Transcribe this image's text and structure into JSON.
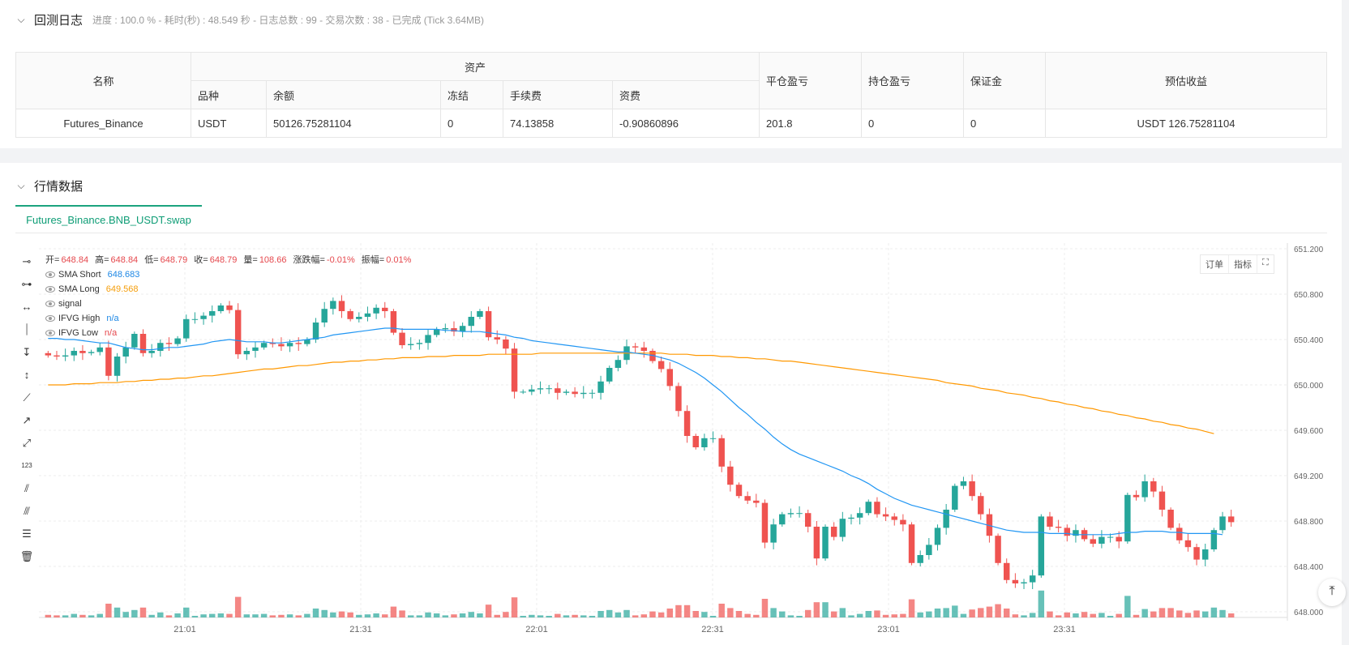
{
  "log": {
    "title": "回测日志",
    "status": "进度 : 100.0 % - 耗时(秒) : 48.549  秒 - 日志总数 : 99 - 交易次数 : 38 - 已完成 (Tick 3.64MB)"
  },
  "account_table": {
    "headers": {
      "name": "名称",
      "assets": "资产",
      "symbol": "品种",
      "balance": "余额",
      "frozen": "冻结",
      "fee": "手续费",
      "funding": "资费",
      "close_pnl": "平仓盈亏",
      "position_pnl": "持仓盈亏",
      "margin": "保证金",
      "est_profit": "预估收益"
    },
    "row": {
      "name": "Futures_Binance",
      "symbol": "USDT",
      "balance": "50126.75281104",
      "frozen": "0",
      "fee": "74.13858",
      "funding": "-0.90860896",
      "close_pnl": "201.8",
      "position_pnl": "0",
      "margin": "0",
      "est_profit": "USDT 126.75281104"
    }
  },
  "market": {
    "title": "行情数据",
    "tab": "Futures_Binance.BNB_USDT.swap"
  },
  "chart_buttons": {
    "orders": "订单",
    "indicators": "指标"
  },
  "legend": {
    "ohlc": {
      "open_label": "开=",
      "open": "648.84",
      "high_label": "高=",
      "high": "648.84",
      "low_label": "低=",
      "low": "648.79",
      "close_label": "收=",
      "close": "648.79",
      "vol_label": "量=",
      "vol": "108.66",
      "chg_label": "涨跌幅=",
      "chg": "-0.01%",
      "amp_label": "振幅=",
      "amp": "0.01%"
    },
    "sma_short": {
      "name": "SMA Short",
      "value": "648.683"
    },
    "sma_long": {
      "name": "SMA Long",
      "value": "649.568"
    },
    "signal": {
      "name": "signal"
    },
    "ifvg_high": {
      "name": "IFVG High",
      "value": "n/a"
    },
    "ifvg_low": {
      "name": "IFVG Low",
      "value": "n/a"
    }
  },
  "colors": {
    "up": "#26a69a",
    "down": "#ef5350",
    "sma_short": "#2196f3",
    "sma_long": "#ff9800",
    "accent": "#1ba37e"
  },
  "chart_data": {
    "type": "candlestick",
    "y_ticks": [
      "651.200",
      "650.800",
      "650.400",
      "650.000",
      "649.600",
      "649.200",
      "648.800",
      "648.400",
      "648.000"
    ],
    "ylim": [
      647.95,
      651.25
    ],
    "x_ticks": [
      "21:01",
      "21:31",
      "22:01",
      "22:31",
      "23:01",
      "23:31"
    ],
    "closes": [
      650.26,
      650.25,
      650.26,
      650.3,
      650.28,
      650.29,
      650.33,
      650.08,
      650.25,
      650.33,
      650.45,
      650.28,
      650.3,
      650.37,
      650.36,
      650.41,
      650.58,
      650.58,
      650.61,
      650.65,
      650.7,
      650.66,
      650.27,
      650.3,
      650.33,
      650.37,
      650.36,
      650.34,
      650.37,
      650.36,
      650.4,
      650.55,
      650.67,
      650.74,
      650.65,
      650.58,
      650.6,
      650.63,
      650.68,
      650.65,
      650.46,
      650.35,
      650.36,
      650.37,
      650.44,
      650.49,
      650.5,
      650.47,
      650.52,
      650.6,
      650.65,
      650.42,
      650.4,
      650.32,
      649.94,
      649.94,
      649.96,
      649.97,
      649.97,
      649.93,
      649.94,
      649.92,
      649.93,
      649.93,
      650.03,
      650.15,
      650.22,
      650.34,
      650.33,
      650.3,
      650.21,
      650.14,
      649.99,
      649.77,
      649.55,
      649.45,
      649.53,
      649.53,
      649.28,
      649.12,
      649.02,
      648.98,
      648.96,
      648.61,
      648.77,
      648.86,
      648.87,
      648.87,
      648.75,
      648.47,
      648.75,
      648.66,
      648.82,
      648.83,
      648.87,
      648.97,
      648.86,
      648.84,
      648.81,
      648.77,
      648.43,
      648.5,
      648.59,
      648.74,
      648.9,
      649.11,
      649.15,
      649.02,
      648.86,
      648.67,
      648.43,
      648.28,
      648.25,
      648.26,
      648.32,
      648.84,
      648.75,
      648.74,
      648.67,
      648.72,
      648.64,
      648.6,
      648.66,
      648.66,
      648.62,
      649.03,
      649.01,
      649.15,
      649.06,
      648.9,
      648.74,
      648.63,
      648.57,
      648.46,
      648.55,
      648.72,
      648.84,
      648.79
    ],
    "sma_short": [
      650.41,
      650.41,
      650.4,
      650.4,
      650.39,
      650.38,
      650.37,
      650.37,
      650.35,
      650.33,
      650.32,
      650.31,
      650.31,
      650.32,
      650.33,
      650.33,
      650.34,
      650.35,
      650.36,
      650.38,
      650.39,
      650.4,
      650.39,
      650.38,
      650.38,
      650.38,
      650.37,
      650.37,
      650.38,
      650.39,
      650.4,
      650.41,
      650.42,
      650.44,
      650.45,
      650.46,
      650.47,
      650.48,
      650.49,
      650.5,
      650.5,
      650.49,
      650.49,
      650.49,
      650.49,
      650.49,
      650.48,
      650.48,
      650.47,
      650.47,
      650.47,
      650.46,
      650.45,
      650.44,
      650.42,
      650.41,
      650.39,
      650.38,
      650.37,
      650.36,
      650.35,
      650.34,
      650.33,
      650.32,
      650.31,
      650.3,
      650.29,
      650.29,
      650.28,
      650.27,
      650.26,
      650.24,
      650.22,
      650.19,
      650.15,
      650.11,
      650.06,
      650.0,
      649.94,
      649.87,
      649.8,
      649.74,
      649.67,
      649.61,
      649.54,
      649.48,
      649.43,
      649.39,
      649.36,
      649.33,
      649.3,
      649.27,
      649.24,
      649.2,
      649.17,
      649.13,
      649.08,
      649.04,
      649.0,
      648.97,
      648.94,
      648.92,
      648.9,
      648.88,
      648.86,
      648.84,
      648.82,
      648.8,
      648.78,
      648.76,
      648.74,
      648.72,
      648.71,
      648.7,
      648.7,
      648.7,
      648.69,
      648.69,
      648.69,
      648.68,
      648.68,
      648.68,
      648.68,
      648.68,
      648.69,
      648.7,
      648.7,
      648.71,
      648.71,
      648.71,
      648.7,
      648.7,
      648.69,
      648.69,
      648.69,
      648.69,
      648.68
    ],
    "sma_long": [
      650.0,
      650.0,
      650.0,
      650.01,
      650.01,
      650.01,
      650.02,
      650.02,
      650.02,
      650.03,
      650.03,
      650.04,
      650.04,
      650.05,
      650.05,
      650.06,
      650.06,
      650.07,
      650.08,
      650.08,
      650.09,
      650.1,
      650.11,
      650.12,
      650.13,
      650.14,
      650.14,
      650.15,
      650.16,
      650.17,
      650.17,
      650.18,
      650.19,
      650.2,
      650.2,
      650.21,
      650.21,
      650.22,
      650.22,
      650.23,
      650.23,
      650.24,
      650.24,
      650.24,
      650.25,
      650.25,
      650.25,
      650.26,
      650.26,
      650.26,
      650.26,
      650.27,
      650.27,
      650.27,
      650.27,
      650.27,
      650.27,
      650.28,
      650.28,
      650.28,
      650.28,
      650.28,
      650.28,
      650.28,
      650.28,
      650.28,
      650.28,
      650.28,
      650.28,
      650.28,
      650.28,
      650.28,
      650.27,
      650.27,
      650.27,
      650.26,
      650.26,
      650.26,
      650.25,
      650.25,
      650.24,
      650.24,
      650.23,
      650.23,
      650.22,
      650.21,
      650.21,
      650.2,
      650.19,
      650.18,
      650.17,
      650.16,
      650.15,
      650.14,
      650.13,
      650.12,
      650.11,
      650.1,
      650.09,
      650.08,
      650.07,
      650.06,
      650.05,
      650.04,
      650.02,
      650.01,
      650.0,
      649.99,
      649.97,
      649.96,
      649.95,
      649.93,
      649.92,
      649.91,
      649.89,
      649.88,
      649.86,
      649.85,
      649.83,
      649.82,
      649.8,
      649.79,
      649.77,
      649.76,
      649.74,
      649.73,
      649.71,
      649.7,
      649.68,
      649.67,
      649.65,
      649.64,
      649.62,
      649.61,
      649.59,
      649.57
    ]
  }
}
